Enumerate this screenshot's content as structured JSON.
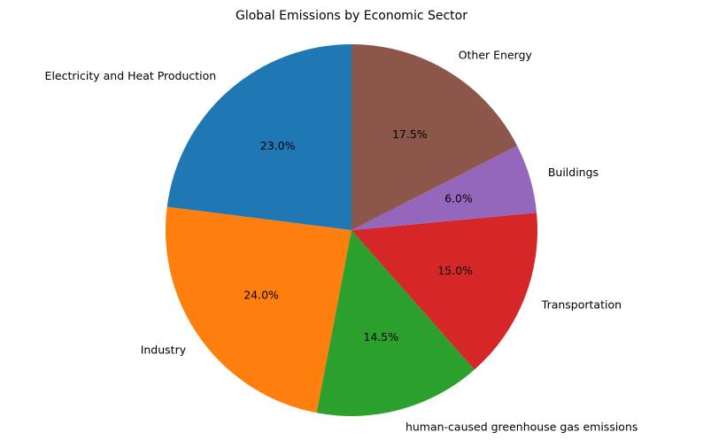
{
  "chart_data": {
    "type": "pie",
    "title": "Global Emissions by Economic Sector",
    "start_angle": 90,
    "direction": "counterclockwise",
    "legend": "none",
    "slices": [
      {
        "label": "Electricity and Heat Production",
        "value": 23.0,
        "pct_text": "23.0%",
        "color": "#1f77b4"
      },
      {
        "label": "Industry",
        "value": 24.0,
        "pct_text": "24.0%",
        "color": "#ff7f0e"
      },
      {
        "label": "human-caused greenhouse gas emissions",
        "value": 14.5,
        "pct_text": "14.5%",
        "color": "#2ca02c"
      },
      {
        "label": "Transportation",
        "value": 15.0,
        "pct_text": "15.0%",
        "color": "#d62728"
      },
      {
        "label": "Buildings",
        "value": 6.0,
        "pct_text": "6.0%",
        "color": "#9467bd"
      },
      {
        "label": "Other Energy",
        "value": 17.5,
        "pct_text": "17.5%",
        "color": "#8c564b"
      }
    ]
  }
}
